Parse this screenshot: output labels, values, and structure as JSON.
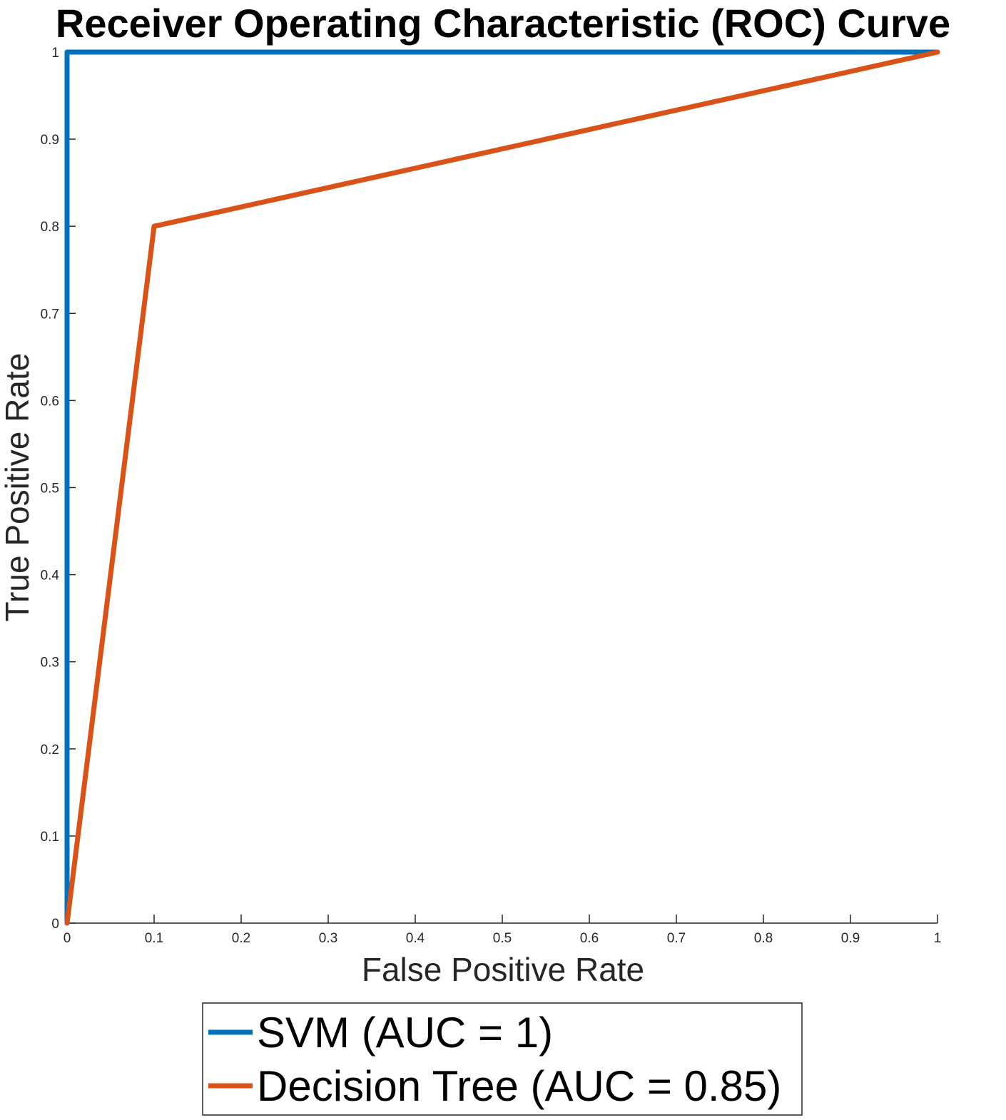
{
  "chart_data": {
    "type": "line",
    "title": "Receiver Operating Characteristic (ROC) Curve",
    "xlabel": "False Positive Rate",
    "ylabel": "True Positive Rate",
    "xlim": [
      0,
      1
    ],
    "ylim": [
      0,
      1
    ],
    "xticks": [
      "0",
      "0.1",
      "0.2",
      "0.3",
      "0.4",
      "0.5",
      "0.6",
      "0.7",
      "0.8",
      "0.9",
      "1"
    ],
    "yticks": [
      "0",
      "0.1",
      "0.2",
      "0.3",
      "0.4",
      "0.5",
      "0.6",
      "0.7",
      "0.8",
      "0.9",
      "1"
    ],
    "grid": false,
    "legend_position": "bottom-outside",
    "series": [
      {
        "name": "SVM (AUC = 1)",
        "color": "#0072BD",
        "x": [
          0,
          0,
          1
        ],
        "y": [
          0,
          1,
          1
        ]
      },
      {
        "name": "Decision Tree (AUC = 0.85)",
        "color": "#D95319",
        "x": [
          0,
          0.1,
          1
        ],
        "y": [
          0,
          0.8,
          1
        ]
      }
    ]
  }
}
